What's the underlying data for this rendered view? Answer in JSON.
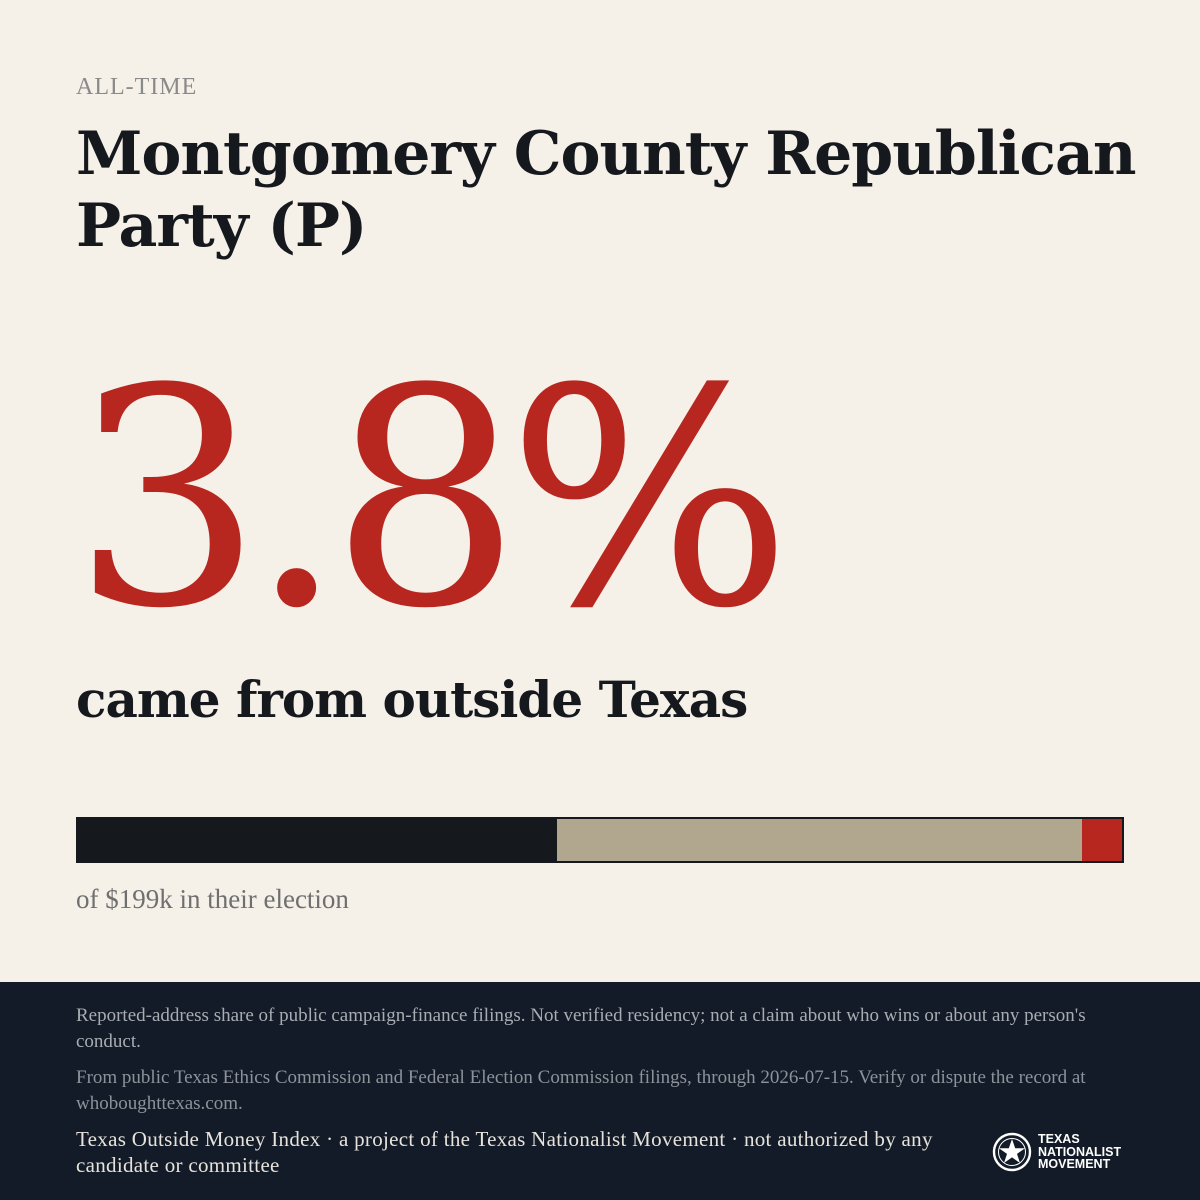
{
  "period_label": "ALL-TIME",
  "committee_name": "Montgomery County Republican Party (P)",
  "headline_percent": "3.8%",
  "headline_caption": "came from outside Texas",
  "share_bar": {
    "segments": [
      {
        "fraction": 0.459,
        "color": "#15191e"
      },
      {
        "fraction": 0.503,
        "color": "#b1a68e"
      },
      {
        "fraction": 0.038,
        "color": "#b8271f"
      }
    ]
  },
  "total_note": "of $199k in their election",
  "footer": {
    "disclaimer": "Reported-address share of public campaign-finance filings. Not verified residency; not a claim about who wins or about any person's conduct.",
    "source": "From public Texas Ethics Commission and Federal Election Commission filings, through 2026-07-15. Verify or dispute the record at whoboughttexas.com.",
    "credit": "Texas Outside Money Index · a project of the Texas Nationalist Movement · not authorized by any candidate or committee",
    "logo_text": "TEXAS\nNATIONALIST\nMOVEMENT",
    "logo_icon": "star-badge-icon"
  },
  "colors": {
    "background": "#f5f0e8",
    "accent": "#b8271f",
    "ink": "#15191e",
    "footer": "#121b27"
  }
}
